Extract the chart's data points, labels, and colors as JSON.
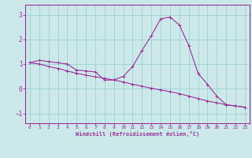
{
  "line1_x": [
    0,
    1,
    2,
    3,
    4,
    5,
    6,
    7,
    8,
    9,
    10,
    11,
    12,
    13,
    14,
    15,
    16,
    17,
    18,
    19,
    20,
    21,
    22,
    23
  ],
  "line1_y": [
    1.05,
    1.15,
    1.1,
    1.05,
    1.0,
    0.75,
    0.72,
    0.68,
    0.35,
    0.35,
    0.5,
    0.9,
    1.55,
    2.15,
    2.83,
    2.9,
    2.58,
    1.75,
    0.62,
    0.18,
    -0.3,
    -0.65,
    -0.7,
    -0.75
  ],
  "line2_x": [
    0,
    1,
    2,
    3,
    4,
    5,
    6,
    7,
    8,
    9,
    10,
    11,
    12,
    13,
    14,
    15,
    16,
    17,
    18,
    19,
    20,
    21,
    22,
    23
  ],
  "line2_y": [
    1.05,
    1.0,
    0.9,
    0.82,
    0.72,
    0.62,
    0.55,
    0.48,
    0.42,
    0.35,
    0.27,
    0.18,
    0.1,
    0.02,
    -0.05,
    -0.12,
    -0.2,
    -0.3,
    -0.4,
    -0.5,
    -0.57,
    -0.65,
    -0.7,
    -0.75
  ],
  "line_color": "#993399",
  "bg_color": "#cce8e8",
  "grid_color": "#99cccc",
  "axis_color": "#993399",
  "xlabel": "Windchill (Refroidissement éolien,°C)",
  "ylim": [
    -1.4,
    3.4
  ],
  "xlim": [
    -0.5,
    23.5
  ],
  "yticks": [
    -1,
    0,
    1,
    2,
    3
  ],
  "xticks": [
    0,
    1,
    2,
    3,
    4,
    5,
    6,
    7,
    8,
    9,
    10,
    11,
    12,
    13,
    14,
    15,
    16,
    17,
    18,
    19,
    20,
    21,
    22,
    23
  ]
}
